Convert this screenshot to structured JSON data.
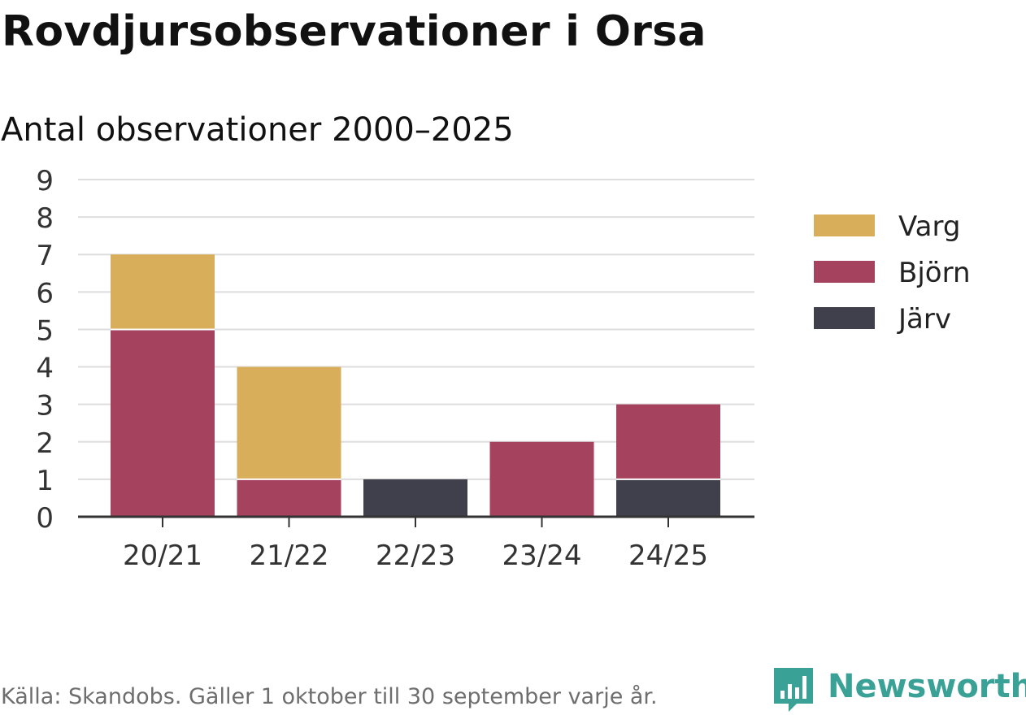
{
  "header": {
    "title": "Rovdjursobservationer i Orsa",
    "subtitle": "Antal observationer 2000–2025"
  },
  "footer": {
    "source": "Källa: Skandobs. Gäller 1 oktober till 30 september varje år.",
    "brand": "Newsworthy"
  },
  "colors": {
    "Varg": "#d9ae5b",
    "Björn": "#a5425d",
    "Järv": "#403f4c",
    "grid": "#dddddd",
    "axis": "#333333",
    "brand": "#3aa196"
  },
  "chart_data": {
    "type": "bar",
    "stacked": true,
    "title": "Rovdjursobservationer i Orsa",
    "subtitle": "Antal observationer 2000–2025",
    "xlabel": "",
    "ylabel": "",
    "categories": [
      "20/21",
      "21/22",
      "22/23",
      "23/24",
      "24/25"
    ],
    "series": [
      {
        "name": "Järv",
        "values": [
          0,
          0,
          1,
          0,
          1
        ]
      },
      {
        "name": "Björn",
        "values": [
          5,
          1,
          0,
          2,
          2
        ]
      },
      {
        "name": "Varg",
        "values": [
          2,
          3,
          0,
          0,
          0
        ]
      }
    ],
    "legend_order": [
      "Varg",
      "Björn",
      "Järv"
    ],
    "ylim": [
      0,
      9
    ],
    "yticks": [
      0,
      1,
      2,
      3,
      4,
      5,
      6,
      7,
      8,
      9
    ],
    "grid": true,
    "legend_position": "right"
  }
}
